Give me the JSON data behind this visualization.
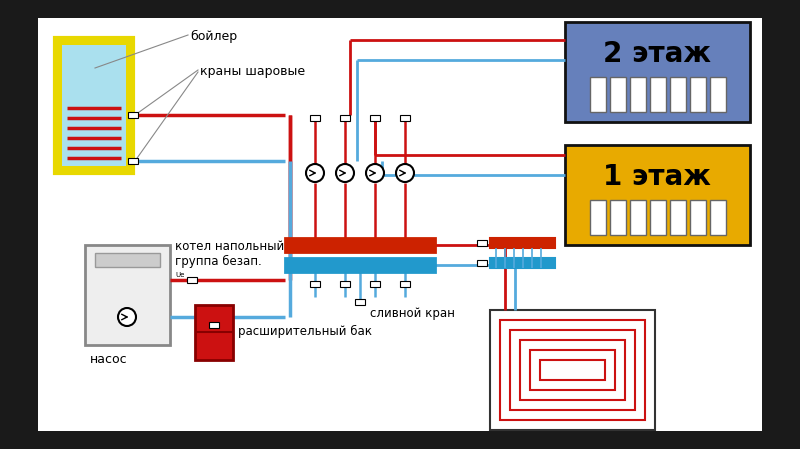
{
  "bg_color": "#ffffff",
  "outer_bg": "#1a1a1a",
  "red_pipe": "#cc1111",
  "blue_pipe": "#55aadd",
  "boiler_border": "#e8d800",
  "boiler_fill": "#aae0ee",
  "boiler_coil": "#cc1111",
  "floor2_bg": "#6680bb",
  "floor1_bg": "#e8aa00",
  "manifold_red": "#cc2200",
  "manifold_blue": "#2299cc",
  "expansion_color": "#cc1111",
  "floor_heat_color": "#cc1111",
  "boiler_box_fill": "#eeeeee",
  "boiler_box_edge": "#888888",
  "label_boiler": "бойлер",
  "label_valves": "краны шаровые",
  "label_boiler_floor": "котел напольный",
  "label_group": "группа безап.",
  "label_pump": "насос",
  "label_drain": "сливной кран",
  "label_expansion": "расширительный бак",
  "label_floor2": "2 этаж",
  "label_floor1": "1 этаж"
}
